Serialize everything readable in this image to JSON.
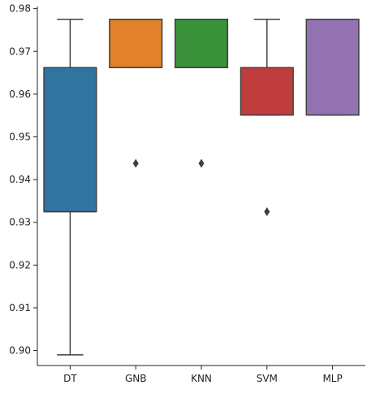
{
  "chart_data": {
    "type": "box",
    "title": "",
    "xlabel": "",
    "ylabel": "",
    "categories": [
      "DT",
      "GNB",
      "KNN",
      "SVM",
      "MLP"
    ],
    "ylim": [
      0.8965,
      0.9805
    ],
    "yticks": [
      0.9,
      0.91,
      0.92,
      0.93,
      0.94,
      0.95,
      0.96,
      0.97,
      0.98
    ],
    "ytick_labels": [
      "0.90",
      "0.91",
      "0.92",
      "0.93",
      "0.94",
      "0.95",
      "0.96",
      "0.97",
      "0.98"
    ],
    "grid": false,
    "boxes": [
      {
        "label": "DT",
        "whisker_low": 0.899,
        "q1": 0.9325,
        "median": 0.9325,
        "q3": 0.9662,
        "whisker_high": 0.9775,
        "outliers": [],
        "color": "#3274a1"
      },
      {
        "label": "GNB",
        "whisker_low": 0.9662,
        "q1": 0.9662,
        "median": 0.9775,
        "q3": 0.9775,
        "whisker_high": 0.9775,
        "outliers": [
          0.9438
        ],
        "color": "#e1812c"
      },
      {
        "label": "KNN",
        "whisker_low": 0.9662,
        "q1": 0.9662,
        "median": 0.9775,
        "q3": 0.9775,
        "whisker_high": 0.9775,
        "outliers": [
          0.9438
        ],
        "color": "#3a923a"
      },
      {
        "label": "SVM",
        "whisker_low": 0.9551,
        "q1": 0.9551,
        "median": 0.9662,
        "q3": 0.9662,
        "whisker_high": 0.9775,
        "outliers": [
          0.9325
        ],
        "color": "#c03d3e"
      },
      {
        "label": "MLP",
        "whisker_low": 0.9551,
        "q1": 0.9551,
        "median": 0.9775,
        "q3": 0.9775,
        "whisker_high": 0.9775,
        "outliers": [],
        "color": "#9372b2"
      }
    ],
    "line_color": "#3f3f3f"
  }
}
